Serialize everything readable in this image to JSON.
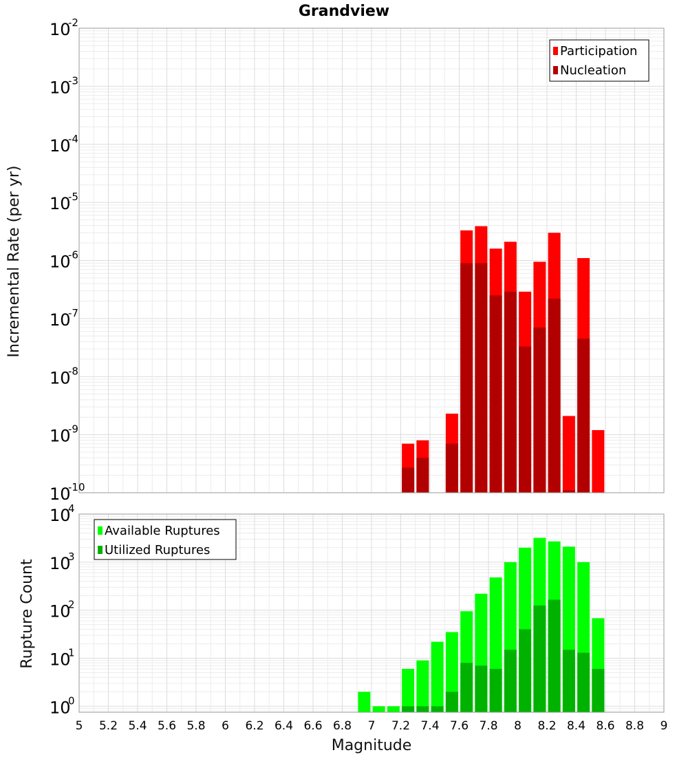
{
  "title": "Grandview",
  "x_axis": {
    "label": "Magnitude",
    "ticks": [
      "5",
      "5.2",
      "5.4",
      "5.6",
      "5.8",
      "6",
      "6.2",
      "6.4",
      "6.6",
      "6.8",
      "7",
      "7.2",
      "7.4",
      "7.6",
      "7.8",
      "8",
      "8.2",
      "8.4",
      "8.6",
      "8.8",
      "9"
    ]
  },
  "colors": {
    "participation": "#ff0000",
    "nucleation": "#b20000",
    "available": "#00ff00",
    "utilized": "#00b200"
  },
  "chart_data": [
    {
      "type": "bar",
      "panel": "top",
      "ylabel": "Incremental Rate (per yr)",
      "xlabel": "",
      "yscale": "log",
      "ylim": [
        1e-10,
        0.01
      ],
      "xlim": [
        5,
        9
      ],
      "grid": true,
      "legend_position": "top-right",
      "ytick_exponents": [
        "-10",
        "-9",
        "-8",
        "-7",
        "-6",
        "-5",
        "-4",
        "-3",
        "-2"
      ],
      "x": [
        7.25,
        7.35,
        7.55,
        7.65,
        7.75,
        7.85,
        7.95,
        8.05,
        8.15,
        8.25,
        8.35,
        8.45,
        8.55
      ],
      "series": [
        {
          "name": "Participation",
          "color": "#ff0000",
          "values": [
            7e-10,
            8e-10,
            2.3e-09,
            3.3e-06,
            3.9e-06,
            1.6e-06,
            2.1e-06,
            2.9e-07,
            9.5e-07,
            3e-06,
            2.1e-09,
            1.1e-06,
            1.2e-09
          ]
        },
        {
          "name": "Nucleation",
          "color": "#b20000",
          "values": [
            2.7e-10,
            4e-10,
            7e-10,
            9e-07,
            9e-07,
            2.5e-07,
            2.9e-07,
            3.3e-08,
            7e-08,
            2.2e-07,
            1.1e-10,
            4.5e-08,
            null
          ]
        }
      ]
    },
    {
      "type": "bar",
      "panel": "bottom",
      "ylabel": "Rupture Count",
      "xlabel": "Magnitude",
      "yscale": "log",
      "ylim": [
        0.75,
        10000
      ],
      "xlim": [
        5,
        9
      ],
      "grid": true,
      "legend_position": "top-left",
      "ytick_exponents": [
        "0",
        "1",
        "2",
        "3",
        "4"
      ],
      "x": [
        6.95,
        7.05,
        7.15,
        7.25,
        7.35,
        7.45,
        7.55,
        7.65,
        7.75,
        7.85,
        7.95,
        8.05,
        8.15,
        8.25,
        8.35,
        8.45,
        8.55
      ],
      "series": [
        {
          "name": "Available Ruptures",
          "color": "#00ff00",
          "values": [
            2,
            1,
            1,
            6,
            9,
            22,
            35,
            95,
            220,
            480,
            1000,
            2000,
            3200,
            2700,
            2100,
            1000,
            68
          ]
        },
        {
          "name": "Utilized Ruptures",
          "color": "#00b200",
          "values": [
            null,
            null,
            null,
            1,
            1,
            1,
            2,
            8,
            7,
            6,
            15,
            40,
            125,
            165,
            15,
            13,
            6
          ]
        }
      ]
    }
  ]
}
